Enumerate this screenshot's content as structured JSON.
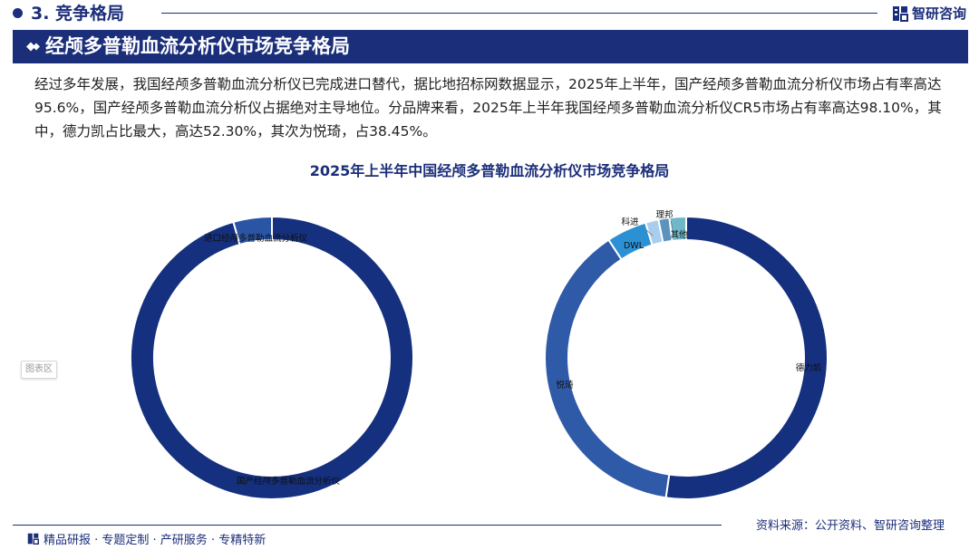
{
  "header": {
    "section_title": "3. 竞争格局",
    "brand": "智研咨询"
  },
  "banner": {
    "title": "经颅多普勒血流分析仪市场竞争格局"
  },
  "paragraph": "经过多年发展，我国经颅多普勒血流分析仪已完成进口替代，据比地招标网数据显示，2025年上半年，国产经颅多普勒血流分析仪市场占有率高达95.6%，国产经颅多普勒血流分析仪占据绝对主导地位。分品牌来看，2025年上半年我国经颅多普勒血流分析仪CR5市场占有率高达98.10%，其中，德力凯占比最大，高达52.30%，其次为悦琦，占38.45%。",
  "chart_title": "2025年上半年中国经颅多普勒血流分析仪市场竞争格局",
  "chart_area_tag": "图表区",
  "colors": {
    "navy": "#1b2e7a"
  },
  "chart_data": [
    {
      "type": "pie",
      "donut": true,
      "title": "",
      "slices": [
        {
          "label": "国产经颅多普勒血流分析仪",
          "value": 95.6,
          "color": "#14307e"
        },
        {
          "label": "进口经颅多普勒血流分析仪",
          "value": 4.4,
          "color": "#2a55a4"
        }
      ]
    },
    {
      "type": "pie",
      "donut": true,
      "title": "",
      "slices": [
        {
          "label": "德力凯",
          "value": 52.3,
          "color": "#14307e"
        },
        {
          "label": "悦琦",
          "value": 38.45,
          "color": "#2f5aa8"
        },
        {
          "label": "DWL",
          "value": 4.6,
          "color": "#2c90d4"
        },
        {
          "label": "科进",
          "value": 1.5,
          "color": "#a9cdec"
        },
        {
          "label": "理邦",
          "value": 1.25,
          "color": "#5b93bd"
        },
        {
          "label": "其他",
          "value": 1.9,
          "color": "#6fb7c9"
        }
      ]
    }
  ],
  "footer": {
    "source": "资料来源：公开资料、智研咨询整理",
    "tagline": "精品研报 · 专题定制 · 产研服务 · 专精特新"
  }
}
